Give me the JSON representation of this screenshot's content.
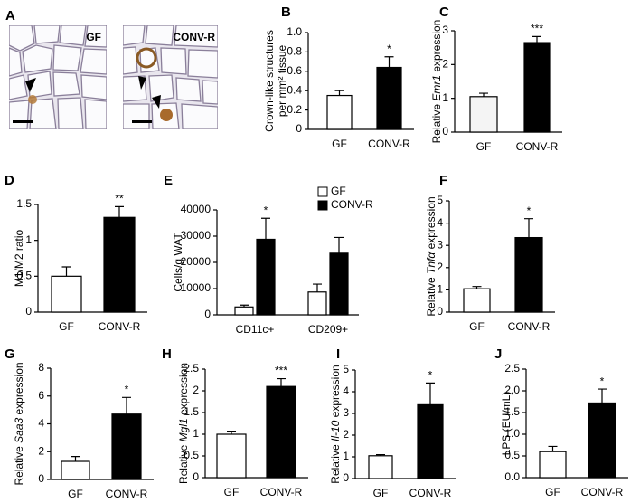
{
  "images": {
    "label": "A",
    "panels": [
      "GF",
      "CONV-R"
    ]
  },
  "chart_data": [
    {
      "type": "bar",
      "label": "B",
      "ylabel": [
        [
          {
            "text": "Crown-like structures"
          }
        ],
        [
          {
            "text": "per mm² tissue"
          }
        ]
      ],
      "categories": [
        "GF",
        "CONV-R"
      ],
      "values": [
        0.35,
        0.64
      ],
      "errors": [
        0.05,
        0.11
      ],
      "colors": [
        "#ffffff",
        "#000000"
      ],
      "significance": [
        null,
        "*"
      ],
      "ylim": [
        0,
        1
      ],
      "yticks": [
        0,
        0.2,
        0.4,
        0.6,
        0.8,
        {
          "value": 1,
          "label": "1.0"
        }
      ]
    },
    {
      "type": "bar",
      "label": "C",
      "ylabel": [
        [
          {
            "text": "Relative "
          },
          {
            "text": "Emr1",
            "italic": true
          },
          {
            "text": " expression"
          }
        ]
      ],
      "categories": [
        "GF",
        "CONV-R"
      ],
      "values": [
        1.05,
        2.65
      ],
      "errors": [
        0.1,
        0.18
      ],
      "colors": [
        "#f4f4f4",
        "#000000"
      ],
      "significance": [
        null,
        "***"
      ],
      "ylim": [
        0,
        3
      ],
      "yticks": [
        0,
        1,
        2,
        3
      ]
    },
    {
      "type": "bar",
      "label": "D",
      "ylabel": [
        [
          {
            "text": "M1/M2 ratio"
          }
        ]
      ],
      "categories": [
        "GF",
        "CONV-R"
      ],
      "values": [
        0.5,
        1.32
      ],
      "errors": [
        0.13,
        0.15
      ],
      "colors": [
        "#ffffff",
        "#000000"
      ],
      "significance": [
        null,
        "**"
      ],
      "ylim": [
        0,
        1.5
      ],
      "yticks": [
        0,
        0.5,
        1,
        1.5
      ]
    },
    {
      "type": "bar",
      "label": "E",
      "ylabel": [
        [
          {
            "text": "Cells/g WAT"
          }
        ]
      ],
      "categories": [
        "CD11c+",
        "CD209+"
      ],
      "series": [
        {
          "name": "GF",
          "color": "#ffffff",
          "values": [
            3000,
            8700
          ],
          "errors": [
            700,
            3000
          ],
          "significance": [
            null,
            null
          ]
        },
        {
          "name": "CONV-R",
          "color": "#000000",
          "values": [
            28800,
            23500
          ],
          "errors": [
            8000,
            6000
          ],
          "significance": [
            "*",
            null
          ]
        }
      ],
      "legend": "upper right",
      "ylim": [
        0,
        40000
      ],
      "yticks": [
        0,
        10000,
        20000,
        30000,
        40000
      ]
    },
    {
      "type": "bar",
      "label": "F",
      "ylabel": [
        [
          {
            "text": "Relative "
          },
          {
            "text": "Tnfα",
            "italic": true
          },
          {
            "text": " expression"
          }
        ]
      ],
      "categories": [
        "GF",
        "CONV-R"
      ],
      "values": [
        1.05,
        3.35
      ],
      "errors": [
        0.1,
        0.85
      ],
      "colors": [
        "#ffffff",
        "#000000"
      ],
      "significance": [
        null,
        "*"
      ],
      "ylim": [
        0,
        5
      ],
      "yticks": [
        0,
        1,
        2,
        3,
        4,
        5
      ]
    },
    {
      "type": "bar",
      "label": "G",
      "ylabel": [
        [
          {
            "text": "Relative "
          },
          {
            "text": "Saa3",
            "italic": true
          },
          {
            "text": " expression"
          }
        ]
      ],
      "categories": [
        "GF",
        "CONV-R"
      ],
      "values": [
        1.3,
        4.7
      ],
      "errors": [
        0.35,
        1.2
      ],
      "colors": [
        "#ffffff",
        "#000000"
      ],
      "significance": [
        null,
        "*"
      ],
      "ylim": [
        0,
        8
      ],
      "yticks": [
        0,
        2,
        4,
        6,
        8
      ]
    },
    {
      "type": "bar",
      "label": "H",
      "ylabel": [
        [
          {
            "text": "Relative "
          },
          {
            "text": "Mgl1",
            "italic": true
          },
          {
            "text": " expression"
          }
        ]
      ],
      "categories": [
        "GF",
        "CONV-R"
      ],
      "values": [
        1.0,
        2.1
      ],
      "errors": [
        0.07,
        0.18
      ],
      "colors": [
        "#ffffff",
        "#000000"
      ],
      "significance": [
        null,
        "***"
      ],
      "ylim": [
        0,
        2.5
      ],
      "yticks": [
        0,
        0.5,
        1,
        1.5,
        2,
        2.5
      ]
    },
    {
      "type": "bar",
      "label": "I",
      "ylabel": [
        [
          {
            "text": "Relative "
          },
          {
            "text": "Il-10",
            "italic": true
          },
          {
            "text": " expression"
          }
        ]
      ],
      "categories": [
        "GF",
        "CONV-R"
      ],
      "values": [
        1.05,
        3.4
      ],
      "errors": [
        0.05,
        1.0
      ],
      "colors": [
        "#ffffff",
        "#000000"
      ],
      "significance": [
        null,
        "*"
      ],
      "ylim": [
        0,
        5
      ],
      "yticks": [
        0,
        1,
        2,
        3,
        4,
        5
      ]
    },
    {
      "type": "bar",
      "label": "J",
      "ylabel": [
        [
          {
            "text": "LPS (EU/mL)"
          }
        ]
      ],
      "categories": [
        "GF",
        "CONV-R"
      ],
      "values": [
        0.6,
        1.72
      ],
      "errors": [
        0.12,
        0.32
      ],
      "colors": [
        "#ffffff",
        "#000000"
      ],
      "significance": [
        null,
        "*"
      ],
      "ylim": [
        0,
        2.5
      ],
      "yticks": [
        {
          "value": 0,
          "label": "0.0"
        },
        {
          "value": 0.5,
          "label": "0.5"
        },
        {
          "value": 1,
          "label": "1.0"
        },
        {
          "value": 1.5,
          "label": "1.5"
        },
        {
          "value": 2,
          "label": "2.0"
        },
        {
          "value": 2.5,
          "label": "2.5"
        }
      ]
    }
  ]
}
